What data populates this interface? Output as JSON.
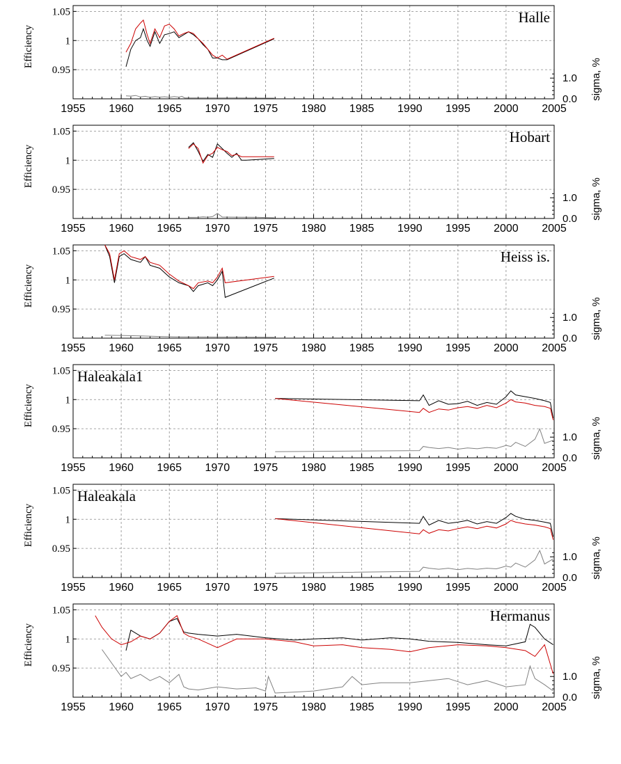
{
  "chart_data": [
    {
      "type": "line",
      "station": "Halle",
      "label_pos": "top-right",
      "ylabel": "Efficiency",
      "y2label": "sigma, %",
      "xlim": [
        1955,
        2005
      ],
      "ylim": [
        0.9,
        1.06
      ],
      "xticks": [
        "1955",
        "1960",
        "1965",
        "1970",
        "1975",
        "1980",
        "1985",
        "1990",
        "1995",
        "2000",
        "2005"
      ],
      "yticks": [
        "1.05",
        "1",
        "0.95"
      ],
      "y2ticks": [
        "1.0",
        "0.0"
      ],
      "series": [
        {
          "color": "#000000",
          "x": [
            1960.5,
            1961,
            1961.5,
            1962,
            1962.3,
            1962.7,
            1963,
            1963.5,
            1964,
            1964.5,
            1965,
            1965.5,
            1966,
            1966.5,
            1967,
            1967.5,
            1968,
            1968.5,
            1969,
            1969.5,
            1970,
            1970.5,
            1971,
            1975.9
          ],
          "y": [
            0.955,
            0.985,
            1.0,
            1.005,
            1.02,
            1.0,
            0.99,
            1.015,
            0.995,
            1.01,
            1.012,
            1.015,
            1.005,
            1.01,
            1.015,
            1.01,
            1.003,
            0.993,
            0.985,
            0.97,
            0.97,
            0.967,
            0.967,
            1.003
          ]
        },
        {
          "color": "#cc0000",
          "x": [
            1960.5,
            1961,
            1961.5,
            1962,
            1962.3,
            1962.7,
            1963,
            1963.5,
            1964,
            1964.5,
            1965,
            1965.5,
            1966,
            1966.5,
            1967,
            1967.5,
            1968,
            1968.5,
            1969,
            1969.5,
            1970,
            1970.5,
            1971,
            1975.9
          ],
          "y": [
            0.98,
            0.995,
            1.02,
            1.03,
            1.035,
            1.01,
            0.995,
            1.02,
            1.005,
            1.025,
            1.028,
            1.02,
            1.008,
            1.012,
            1.015,
            1.012,
            1.003,
            0.995,
            0.985,
            0.975,
            0.97,
            0.975,
            0.968,
            1.004
          ]
        },
        {
          "color": "#808080",
          "x": [
            1960.5,
            1961,
            1961.5,
            1962,
            1962.5,
            1963,
            1963.5,
            1964,
            1964.5,
            1965,
            1965.5,
            1966,
            1966.3,
            1966.6,
            1968,
            1970,
            1972,
            1975.9
          ],
          "y": [
            0.14,
            0.13,
            0.16,
            0.09,
            0.12,
            0.07,
            0.11,
            0.08,
            0.1,
            0.07,
            0.11,
            0.08,
            0.12,
            0.045,
            0.04,
            0.045,
            0.04,
            0.035
          ]
        }
      ]
    },
    {
      "type": "line",
      "station": "Hobart",
      "label_pos": "top-right",
      "ylabel": "Efficiency",
      "y2label": "sigma, %",
      "xlim": [
        1955,
        2005
      ],
      "ylim": [
        0.9,
        1.06
      ],
      "xticks": [
        "1955",
        "1960",
        "1965",
        "1970",
        "1975",
        "1980",
        "1985",
        "1990",
        "1995",
        "2000",
        "2005"
      ],
      "yticks": [
        "1.05",
        "1",
        "0.95"
      ],
      "y2ticks": [
        "1.0",
        "0.0"
      ],
      "series": [
        {
          "color": "#000000",
          "x": [
            1967,
            1967.5,
            1968,
            1968.5,
            1969,
            1969.5,
            1970,
            1970.5,
            1971,
            1971.5,
            1972,
            1972.5,
            1973,
            1975.9
          ],
          "y": [
            1.022,
            1.03,
            1.015,
            0.998,
            1.01,
            1.005,
            1.028,
            1.02,
            1.012,
            1.005,
            1.012,
            1.0,
            1.0,
            1.003
          ]
        },
        {
          "color": "#cc0000",
          "x": [
            1967,
            1967.5,
            1968,
            1968.5,
            1969,
            1969.5,
            1970,
            1970.5,
            1971,
            1971.5,
            1972,
            1972.5,
            1973,
            1975.9
          ],
          "y": [
            1.02,
            1.028,
            1.02,
            0.995,
            1.008,
            1.012,
            1.022,
            1.018,
            1.015,
            1.008,
            1.01,
            1.006,
            1.006,
            1.006
          ]
        },
        {
          "color": "#808080",
          "x": [
            1967,
            1968,
            1968.5,
            1969,
            1969.5,
            1970,
            1970.5,
            1972,
            1974,
            1975.9
          ],
          "y": [
            0.055,
            0.06,
            0.08,
            0.065,
            0.09,
            0.25,
            0.07,
            0.065,
            0.06,
            0.035
          ]
        }
      ]
    },
    {
      "type": "line",
      "station": "Heiss is.",
      "label_pos": "top-right",
      "ylabel": "Efficiency",
      "y2label": "sigma, %",
      "xlim": [
        1955,
        2005
      ],
      "ylim": [
        0.9,
        1.06
      ],
      "xticks": [
        "1955",
        "1960",
        "1965",
        "1970",
        "1975",
        "1980",
        "1985",
        "1990",
        "1995",
        "2000",
        "2005"
      ],
      "yticks": [
        "1.05",
        "1",
        "0.95"
      ],
      "y2ticks": [
        "1.0",
        "0.0"
      ],
      "series": [
        {
          "color": "#000000",
          "x": [
            1958.3,
            1958.8,
            1959.3,
            1959.8,
            1960.3,
            1961,
            1962,
            1962.5,
            1963,
            1964,
            1965,
            1966,
            1967,
            1967.5,
            1968,
            1969,
            1969.5,
            1970,
            1970.5,
            1970.8,
            1975.9
          ],
          "y": [
            1.06,
            1.04,
            0.995,
            1.04,
            1.045,
            1.035,
            1.03,
            1.04,
            1.025,
            1.02,
            1.005,
            0.995,
            0.99,
            0.98,
            0.99,
            0.995,
            0.99,
            1.0,
            1.015,
            0.97,
            1.003
          ]
        },
        {
          "color": "#cc0000",
          "x": [
            1958.3,
            1958.8,
            1959.3,
            1959.8,
            1960.3,
            1961,
            1962,
            1962.5,
            1963,
            1964,
            1965,
            1966,
            1967,
            1967.5,
            1968,
            1969,
            1969.5,
            1970,
            1970.5,
            1970.8,
            1975.9
          ],
          "y": [
            1.06,
            1.045,
            1.0,
            1.045,
            1.05,
            1.04,
            1.035,
            1.04,
            1.03,
            1.025,
            1.01,
            0.998,
            0.99,
            0.985,
            0.995,
            0.998,
            0.995,
            1.005,
            1.02,
            0.995,
            1.006
          ]
        },
        {
          "color": "#808080",
          "x": [
            1958.3,
            1960,
            1962,
            1964,
            1965,
            1966,
            1968,
            1970,
            1972,
            1975.9
          ],
          "y": [
            0.14,
            0.13,
            0.11,
            0.08,
            0.07,
            0.065,
            0.06,
            0.055,
            0.055,
            0.045
          ]
        }
      ]
    },
    {
      "type": "line",
      "station": "Haleakala1",
      "label_pos": "top-left",
      "ylabel": "Efficiency",
      "y2label": "sigma, %",
      "xlim": [
        1955,
        2005
      ],
      "ylim": [
        0.9,
        1.06
      ],
      "xticks": [
        "1955",
        "1960",
        "1965",
        "1970",
        "1975",
        "1980",
        "1985",
        "1990",
        "1995",
        "2000",
        "2005"
      ],
      "yticks": [
        "1.05",
        "1",
        "0.95"
      ],
      "y2ticks": [
        "1.0",
        "0.0"
      ],
      "series": [
        {
          "color": "#000000",
          "x": [
            1976,
            1991,
            1991.4,
            1992,
            1993,
            1994,
            1995,
            1996,
            1997,
            1998,
            1999,
            2000,
            2000.5,
            2001,
            2002,
            2003,
            2004,
            2004.6,
            2004.9
          ],
          "y": [
            1.002,
            0.998,
            1.008,
            0.99,
            0.998,
            0.992,
            0.993,
            0.997,
            0.99,
            0.995,
            0.992,
            1.005,
            1.015,
            1.008,
            1.005,
            1.002,
            0.998,
            0.995,
            0.968
          ]
        },
        {
          "color": "#cc0000",
          "x": [
            1976,
            1991,
            1991.4,
            1992,
            1993,
            1994,
            1995,
            1996,
            1997,
            1998,
            1999,
            2000,
            2000.5,
            2001,
            2002,
            2003,
            2004,
            2004.6,
            2004.9
          ],
          "y": [
            1.002,
            0.978,
            0.985,
            0.978,
            0.984,
            0.982,
            0.986,
            0.988,
            0.985,
            0.99,
            0.986,
            0.994,
            1.0,
            0.996,
            0.994,
            0.99,
            0.988,
            0.985,
            0.965
          ]
        },
        {
          "color": "#808080",
          "x": [
            1976,
            1991,
            1991.4,
            1992,
            1993,
            1994,
            1995,
            1996,
            1997,
            1998,
            1999,
            2000,
            2000.5,
            2001,
            2002,
            2003,
            2003.5,
            2004,
            2004.9
          ],
          "y": [
            0.3,
            0.35,
            0.55,
            0.5,
            0.45,
            0.5,
            0.42,
            0.48,
            0.44,
            0.5,
            0.46,
            0.6,
            0.55,
            0.75,
            0.55,
            0.9,
            1.4,
            0.7,
            0.85
          ]
        }
      ]
    },
    {
      "type": "line",
      "station": "Haleakala",
      "label_pos": "top-left",
      "ylabel": "Efficiency",
      "y2label": "sigma, %",
      "xlim": [
        1955,
        2005
      ],
      "ylim": [
        0.9,
        1.06
      ],
      "xticks": [
        "1955",
        "1960",
        "1965",
        "1970",
        "1975",
        "1980",
        "1985",
        "1990",
        "1995",
        "2000",
        "2005"
      ],
      "yticks": [
        "1.05",
        "1",
        "0.95"
      ],
      "y2ticks": [
        "1.0",
        "0.0"
      ],
      "series": [
        {
          "color": "#000000",
          "x": [
            1976,
            1991,
            1991.4,
            1992,
            1993,
            1994,
            1995,
            1996,
            1997,
            1998,
            1999,
            2000,
            2000.5,
            2001,
            2002,
            2003,
            2004,
            2004.6,
            2004.9
          ],
          "y": [
            1.001,
            0.993,
            1.005,
            0.99,
            0.998,
            0.993,
            0.995,
            0.998,
            0.992,
            0.996,
            0.993,
            1.003,
            1.01,
            1.005,
            1.0,
            0.998,
            0.995,
            0.993,
            0.97
          ]
        },
        {
          "color": "#cc0000",
          "x": [
            1976,
            1991,
            1991.4,
            1992,
            1993,
            1994,
            1995,
            1996,
            1997,
            1998,
            1999,
            2000,
            2000.5,
            2001,
            2002,
            2003,
            2004,
            2004.6,
            2004.9
          ],
          "y": [
            1.001,
            0.975,
            0.982,
            0.976,
            0.982,
            0.98,
            0.984,
            0.987,
            0.984,
            0.988,
            0.985,
            0.992,
            0.998,
            0.995,
            0.992,
            0.99,
            0.987,
            0.984,
            0.965
          ]
        },
        {
          "color": "#808080",
          "x": [
            1976,
            1991,
            1991.4,
            1992,
            1993,
            1994,
            1995,
            1996,
            1997,
            1998,
            1999,
            2000,
            2000.5,
            2001,
            2002,
            2003,
            2003.5,
            2004,
            2004.9
          ],
          "y": [
            0.2,
            0.3,
            0.5,
            0.45,
            0.4,
            0.45,
            0.38,
            0.44,
            0.4,
            0.45,
            0.42,
            0.55,
            0.5,
            0.7,
            0.5,
            0.85,
            1.3,
            0.65,
            0.9
          ]
        }
      ]
    },
    {
      "type": "line",
      "station": "Hermanus",
      "label_pos": "top-right",
      "ylabel": "Efficiency",
      "y2label": "sigma, %",
      "xlim": [
        1955,
        2005
      ],
      "ylim": [
        0.9,
        1.06
      ],
      "xticks": [
        "1955",
        "1960",
        "1965",
        "1970",
        "1975",
        "1980",
        "1985",
        "1990",
        "1995",
        "2000",
        "2005"
      ],
      "yticks": [
        "1.05",
        "1",
        "0.95"
      ],
      "y2ticks": [
        "1.0",
        "0.0"
      ],
      "series": [
        {
          "color": "#000000",
          "x": [
            1960.5,
            1961,
            1962,
            1963,
            1964,
            1965,
            1965.8,
            1966.5,
            1967,
            1968,
            1970,
            1972,
            1975,
            1978,
            1980,
            1983,
            1985,
            1988,
            1990,
            1992,
            1995,
            1998,
            2000,
            2002,
            2002.5,
            2003,
            2004,
            2004.9
          ],
          "y": [
            0.98,
            1.015,
            1.005,
            1.0,
            1.01,
            1.03,
            1.035,
            1.012,
            1.01,
            1.008,
            1.005,
            1.008,
            1.002,
            0.998,
            1.0,
            1.002,
            0.998,
            1.002,
            1.0,
            0.996,
            0.994,
            0.99,
            0.988,
            0.995,
            1.025,
            1.02,
            1.0,
            0.99
          ]
        },
        {
          "color": "#cc0000",
          "x": [
            1957.3,
            1958,
            1959,
            1960,
            1961,
            1962,
            1963,
            1964,
            1965,
            1965.8,
            1966.5,
            1967,
            1968,
            1970,
            1972,
            1975,
            1978,
            1980,
            1983,
            1985,
            1988,
            1990,
            1992,
            1995,
            1998,
            2000,
            2002,
            2003,
            2004,
            2004.9
          ],
          "y": [
            1.04,
            1.02,
            1.0,
            0.99,
            0.995,
            1.005,
            1.0,
            1.01,
            1.03,
            1.04,
            1.01,
            1.005,
            1.0,
            0.985,
            1.0,
            1.0,
            0.995,
            0.988,
            0.99,
            0.985,
            0.982,
            0.978,
            0.985,
            0.99,
            0.988,
            0.985,
            0.98,
            0.97,
            0.99,
            0.94
          ]
        },
        {
          "color": "#808080",
          "x": [
            1958,
            1960,
            1960.5,
            1961,
            1962,
            1963,
            1964,
            1965,
            1966,
            1966.5,
            1967,
            1968,
            1970,
            1972,
            1974,
            1975,
            1975.3,
            1976,
            1978,
            1980,
            1983,
            1984,
            1985,
            1987,
            1990,
            1992,
            1994,
            1996,
            1998,
            2000,
            2002,
            2002.5,
            2003,
            2004,
            2004.9
          ],
          "y": [
            2.3,
            1.0,
            1.2,
            0.9,
            1.1,
            0.8,
            1.0,
            0.7,
            1.1,
            0.5,
            0.4,
            0.35,
            0.5,
            0.4,
            0.45,
            0.3,
            1.0,
            0.2,
            0.25,
            0.3,
            0.5,
            1.0,
            0.6,
            0.7,
            0.7,
            0.8,
            0.9,
            0.6,
            0.8,
            0.5,
            0.6,
            1.5,
            0.9,
            0.6,
            0.3
          ]
        }
      ]
    }
  ]
}
